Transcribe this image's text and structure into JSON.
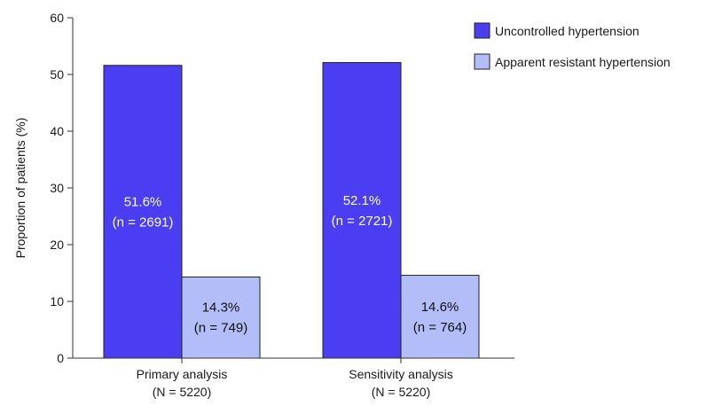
{
  "chart_data": {
    "type": "bar",
    "categories": [
      "Primary analysis",
      "Sensitivity analysis"
    ],
    "category_sublabels": [
      "(N = 5220)",
      "(N = 5220)"
    ],
    "series": [
      {
        "name": "Uncontrolled hypertension",
        "color": "#4a3df2",
        "label_color": "#ffffff",
        "values": [
          51.6,
          52.1
        ],
        "labels": [
          [
            "51.6%",
            "(n = 2691)"
          ],
          [
            "52.1%",
            "(n = 2721)"
          ]
        ]
      },
      {
        "name": "Apparent resistant hypertension",
        "color": "#b3bdf7",
        "label_color": "#111111",
        "values": [
          14.3,
          14.6
        ],
        "labels": [
          [
            "14.3%",
            "(n = 749)"
          ],
          [
            "14.6%",
            "(n = 764)"
          ]
        ]
      }
    ],
    "ylabel": "Proportion of patients (%)",
    "ylim": [
      0,
      60
    ],
    "yticks": [
      0,
      10,
      20,
      30,
      40,
      50,
      60
    ],
    "grid": false,
    "legend_position": "top-right"
  }
}
